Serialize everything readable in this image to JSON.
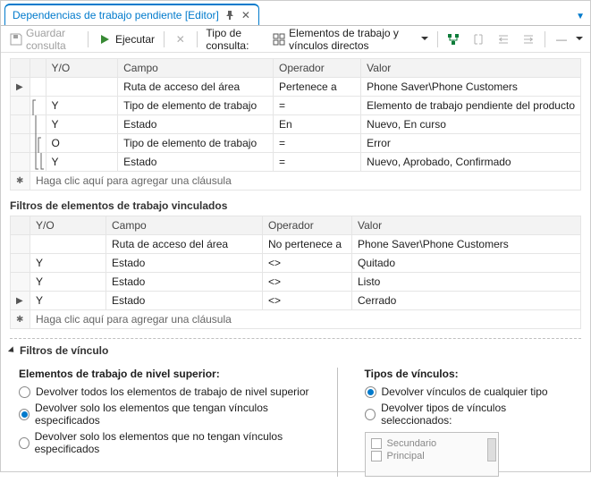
{
  "tab": {
    "title": "Dependencias de trabajo pendiente [Editor]"
  },
  "toolbar": {
    "save_label": "Guardar consulta",
    "run_label": "Ejecutar",
    "query_type_label": "Tipo de consulta:",
    "query_type_value": "Elementos de trabajo y vínculos directos"
  },
  "main_grid": {
    "headers": {
      "yo": "Y/O",
      "campo": "Campo",
      "operador": "Operador",
      "valor": "Valor"
    },
    "rows": [
      {
        "marker": "▶",
        "yo": "",
        "campo": "Ruta de acceso del área",
        "op": "Pertenece a",
        "valor": "Phone Saver\\Phone Customers"
      },
      {
        "marker": "",
        "yo": "Y",
        "campo": "Tipo de elemento de trabajo",
        "op": "=",
        "valor": "Elemento de trabajo pendiente del producto"
      },
      {
        "marker": "",
        "yo": "Y",
        "campo": "Estado",
        "op": "En",
        "valor": "Nuevo, En curso"
      },
      {
        "marker": "",
        "yo": "O",
        "campo": "Tipo de elemento de trabajo",
        "op": "=",
        "valor": "Error"
      },
      {
        "marker": "",
        "yo": "Y",
        "campo": "Estado",
        "op": "=",
        "valor": "Nuevo, Aprobado, Confirmado"
      }
    ],
    "add_row_text": "Haga clic aquí para agregar una cláusula",
    "add_marker": "✱"
  },
  "linked_section_title": "Filtros de elementos de trabajo vinculados",
  "linked_grid": {
    "headers": {
      "yo": "Y/O",
      "campo": "Campo",
      "operador": "Operador",
      "valor": "Valor"
    },
    "rows": [
      {
        "marker": "",
        "yo": "",
        "campo": "Ruta de acceso del área",
        "op": "No pertenece a",
        "valor": "Phone Saver\\Phone Customers"
      },
      {
        "marker": "",
        "yo": "Y",
        "campo": "Estado",
        "op": "<>",
        "valor": "Quitado"
      },
      {
        "marker": "",
        "yo": "Y",
        "campo": "Estado",
        "op": "<>",
        "valor": "Listo"
      },
      {
        "marker": "▶",
        "yo": "Y",
        "campo": "Estado",
        "op": "<>",
        "valor": "Cerrado"
      }
    ],
    "add_row_text": "Haga clic aquí para agregar una cláusula",
    "add_marker": "✱"
  },
  "link_filters": {
    "section_title": "Filtros de vínculo",
    "top_level_heading": "Elementos de trabajo de nivel superior:",
    "top_options": [
      "Devolver todos los elementos de trabajo de nivel superior",
      "Devolver solo los elementos que tengan vínculos especificados",
      "Devolver solo los elementos que no tengan vínculos especificados"
    ],
    "top_selected_index": 1,
    "link_types_heading": "Tipos de vínculos:",
    "link_type_options": [
      "Devolver vínculos de cualquier tipo",
      "Devolver tipos de vínculos seleccionados:"
    ],
    "link_type_selected_index": 0,
    "link_type_list": [
      "Secundario",
      "Principal"
    ]
  },
  "colors": {
    "accent": "#007acc",
    "border": "#d0d0d0",
    "header_bg": "#f3f3f3"
  }
}
